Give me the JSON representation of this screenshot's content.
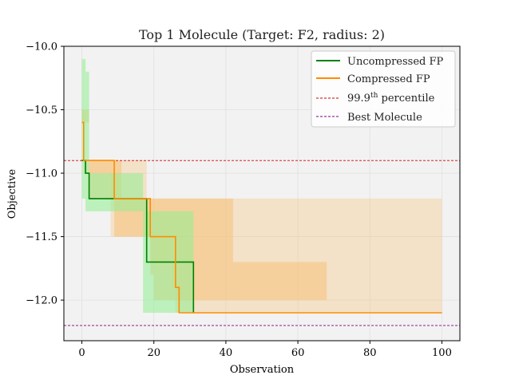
{
  "chart_data": {
    "type": "line",
    "title": "Top 1 Molecule (Target: F2, radius: 2)",
    "xlabel": "Observation",
    "ylabel": "Objective",
    "xlim": [
      -5,
      105
    ],
    "ylim": [
      -12.32,
      -10.0
    ],
    "xticks": [
      0,
      20,
      40,
      60,
      80,
      100
    ],
    "yticks": [
      -12.0,
      -11.5,
      -11.0,
      -10.5,
      -10.0
    ],
    "xtick_labels": [
      "0",
      "20",
      "40",
      "60",
      "80",
      "100"
    ],
    "ytick_labels": [
      "−12.0",
      "−11.5",
      "−11.0",
      "−10.5",
      "−10.0"
    ],
    "grid": true,
    "legend_position": "top-right",
    "series": [
      {
        "name": "Uncompressed FP",
        "color": "#008000",
        "band_color": "#90ee90",
        "x": [
          0,
          1,
          2,
          17,
          18,
          29,
          31
        ],
        "y": [
          -10.9,
          -11.0,
          -11.2,
          -11.2,
          -11.7,
          -11.7,
          -12.1
        ],
        "upper": [
          -10.1,
          -10.2,
          -11.0,
          -11.2,
          -11.3,
          -11.3,
          -12.1
        ],
        "lower": [
          -11.2,
          -11.3,
          -11.3,
          -12.1,
          -12.1,
          -12.1,
          -12.1
        ]
      },
      {
        "name": "Compressed FP",
        "color": "#ff8c00",
        "band_color": "#f5c27a",
        "x": [
          0,
          0.5,
          8,
          9,
          18,
          19,
          25,
          26,
          27,
          100
        ],
        "y": [
          -10.6,
          -10.9,
          -10.9,
          -11.2,
          -11.2,
          -11.5,
          -11.5,
          -11.9,
          -12.1,
          -12.1
        ],
        "upper": [
          -10.5,
          -10.9,
          -10.9,
          -10.9,
          -11.2,
          -11.2,
          -11.2,
          -11.2,
          -11.2,
          -12.1
        ],
        "lower": [
          -10.6,
          -11.0,
          -11.5,
          -11.5,
          -11.5,
          -11.7,
          -11.9,
          -12.1,
          -12.1,
          -12.1
        ]
      }
    ],
    "band_outline": {
      "x": [
        0,
        2,
        9,
        11,
        19,
        20,
        41,
        42,
        66,
        68
      ],
      "upper": [
        -10.5,
        -10.9,
        -10.9,
        -11.2,
        -11.2,
        -11.2,
        -11.2,
        -11.7,
        -11.7,
        -12.1
      ],
      "lower": [
        -10.6,
        -11.2,
        -11.5,
        -11.5,
        -11.8,
        -12.0,
        -12.0,
        -12.0,
        -12.0,
        -12.1
      ]
    },
    "reference_lines": [
      {
        "name": "99.9th percentile",
        "y": -10.9,
        "color": "#cc0000",
        "style": "dashed"
      },
      {
        "name": "Best Molecule",
        "y": -12.2,
        "color": "#800080",
        "style": "dashed"
      }
    ],
    "legend": [
      {
        "label": "Uncompressed FP",
        "kind": "line",
        "color": "#008000"
      },
      {
        "label": "Compressed FP",
        "kind": "line",
        "color": "#ff8c00"
      },
      {
        "label_main": "99.9",
        "label_sup": "th",
        "label_rest": " percentile",
        "kind": "dashed",
        "color": "#cc0000"
      },
      {
        "label": "Best Molecule",
        "kind": "dashed",
        "color": "#800080"
      }
    ]
  }
}
